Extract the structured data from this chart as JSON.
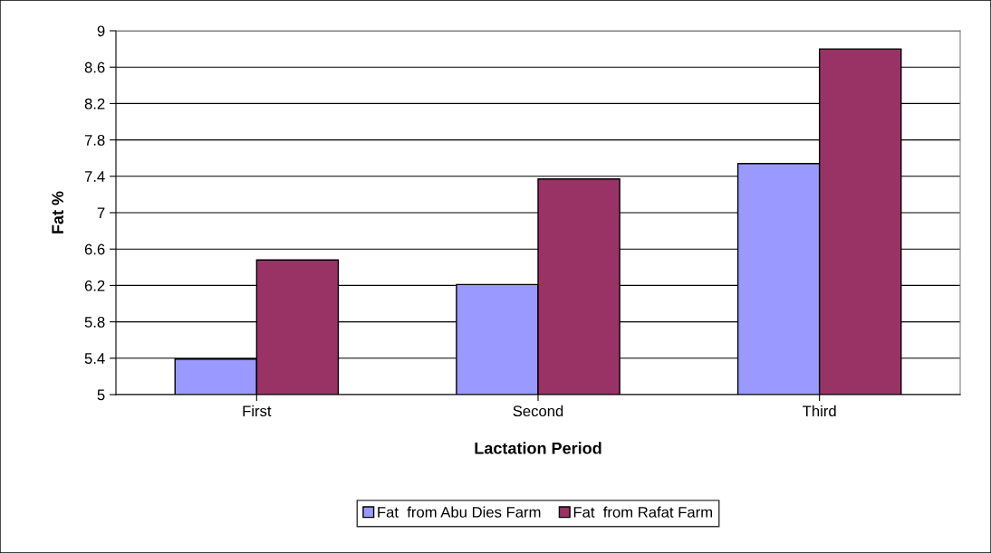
{
  "chart_data": {
    "type": "bar",
    "xlabel": "Lactation Period",
    "ylabel": "Fat %",
    "categories": [
      "First",
      "Second",
      "Third"
    ],
    "series": [
      {
        "name": "Fat  from Abu Dies Farm",
        "color": "#9999ff",
        "values": [
          5.39,
          6.21,
          7.54
        ]
      },
      {
        "name": "Fat  from Rafat Farm",
        "color": "#993366",
        "values": [
          6.48,
          7.37,
          8.8
        ]
      }
    ],
    "ylim": [
      5,
      9
    ],
    "yticks": [
      5,
      5.4,
      5.8,
      6.2,
      6.6,
      7,
      7.4,
      7.8,
      8.2,
      8.6,
      9
    ],
    "grid": "y",
    "legend": "bottom"
  }
}
